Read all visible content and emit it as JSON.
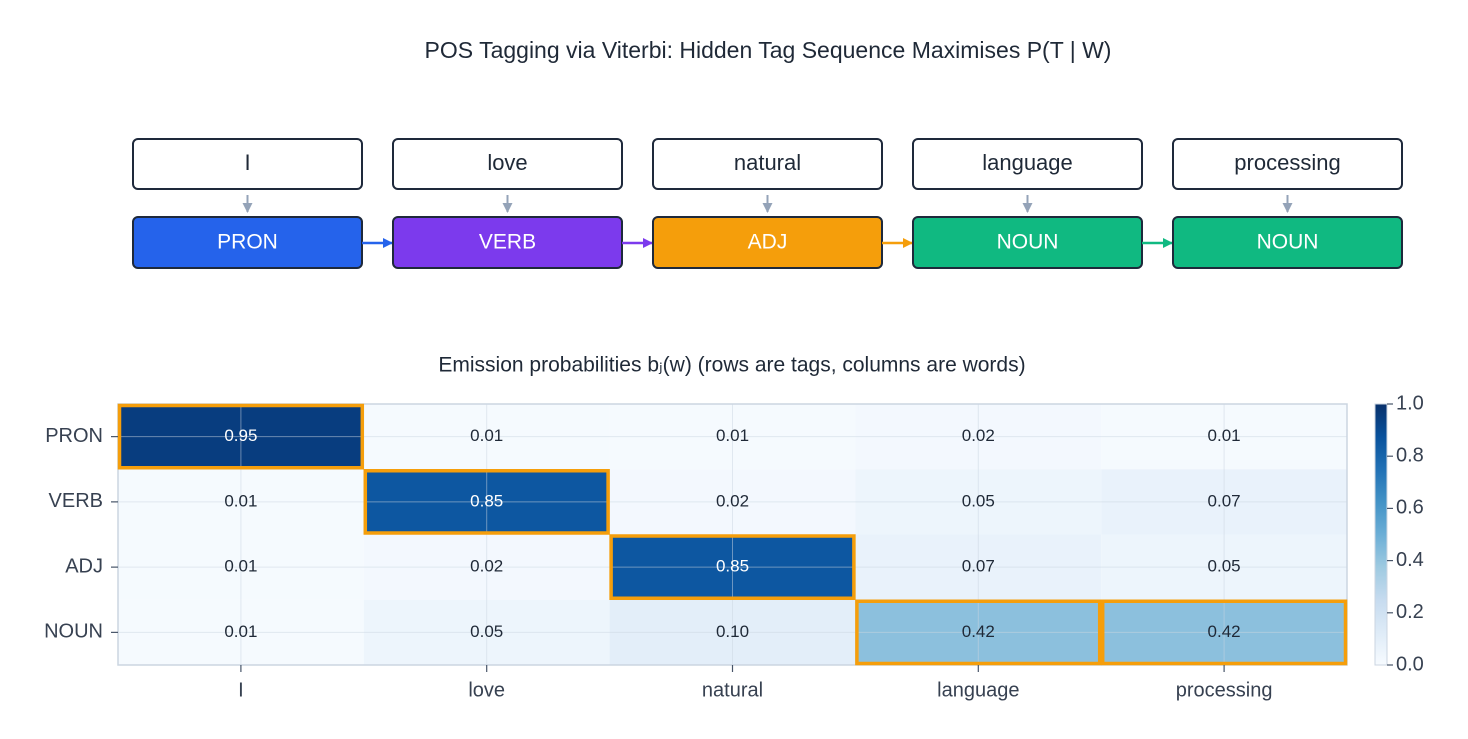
{
  "title": "POS Tagging via Viterbi: Hidden Tag Sequence Maximises P(T | W)",
  "diagram": {
    "words": [
      "I",
      "love",
      "natural",
      "language",
      "processing"
    ],
    "tags": [
      {
        "label": "PRON",
        "color": "#2563eb"
      },
      {
        "label": "VERB",
        "color": "#7c3aed"
      },
      {
        "label": "ADJ",
        "color": "#f59e0b"
      },
      {
        "label": "NOUN",
        "color": "#10b981"
      },
      {
        "label": "NOUN",
        "color": "#10b981"
      }
    ]
  },
  "chart_data": {
    "type": "heatmap",
    "title": "Emission probabilities bⱼ(w)  (rows are tags, columns are words)",
    "rows": [
      "PRON",
      "VERB",
      "ADJ",
      "NOUN"
    ],
    "columns": [
      "I",
      "love",
      "natural",
      "language",
      "processing"
    ],
    "values": [
      [
        0.95,
        0.01,
        0.01,
        0.02,
        0.01
      ],
      [
        0.01,
        0.85,
        0.02,
        0.05,
        0.07
      ],
      [
        0.01,
        0.02,
        0.85,
        0.07,
        0.05
      ],
      [
        0.01,
        0.05,
        0.1,
        0.42,
        0.42
      ]
    ],
    "value_labels": [
      [
        "0.95",
        "0.01",
        "0.01",
        "0.02",
        "0.01"
      ],
      [
        "0.01",
        "0.85",
        "0.02",
        "0.05",
        "0.07"
      ],
      [
        "0.01",
        "0.02",
        "0.85",
        "0.07",
        "0.05"
      ],
      [
        "0.01",
        "0.05",
        "0.10",
        "0.42",
        "0.42"
      ]
    ],
    "colormap": "Blues",
    "clim": [
      0,
      1
    ],
    "cticks": [
      {
        "value": 0,
        "label": "0.0"
      },
      0.2,
      0.4,
      0.6,
      0.8,
      {
        "value": 1,
        "label": "1.0"
      }
    ],
    "highlight_path": [
      0,
      1,
      2,
      3,
      3
    ],
    "highlight_color": "#f59e0b",
    "grid": true
  }
}
